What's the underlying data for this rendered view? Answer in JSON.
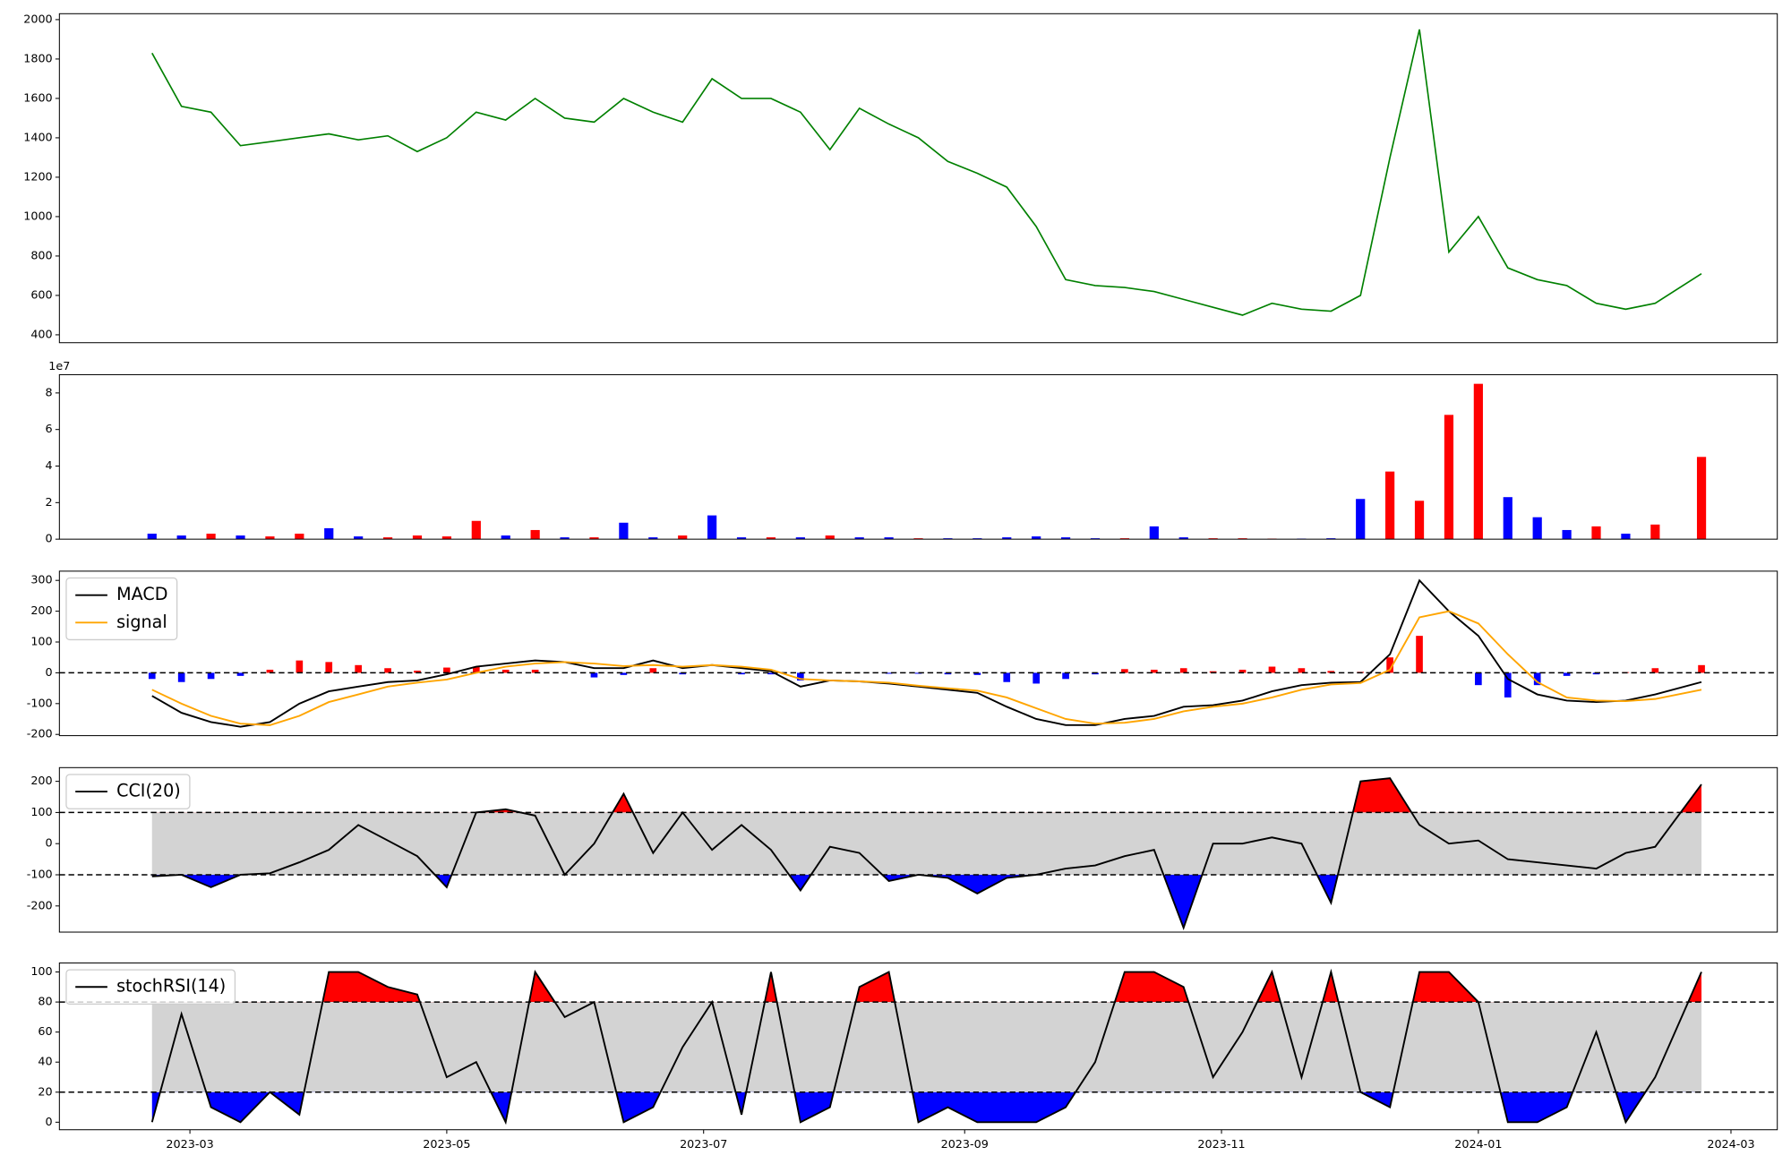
{
  "chart_data": [
    {
      "type": "line",
      "color": "green",
      "x": [
        "2023-02-20",
        "2023-02-27",
        "2023-03-06",
        "2023-03-13",
        "2023-03-20",
        "2023-03-27",
        "2023-04-03",
        "2023-04-10",
        "2023-04-17",
        "2023-04-24",
        "2023-05-01",
        "2023-05-08",
        "2023-05-15",
        "2023-05-22",
        "2023-05-29",
        "2023-06-05",
        "2023-06-12",
        "2023-06-19",
        "2023-06-26",
        "2023-07-03",
        "2023-07-10",
        "2023-07-17",
        "2023-07-24",
        "2023-07-31",
        "2023-08-07",
        "2023-08-14",
        "2023-08-21",
        "2023-08-28",
        "2023-09-04",
        "2023-09-11",
        "2023-09-18",
        "2023-09-25",
        "2023-10-02",
        "2023-10-09",
        "2023-10-16",
        "2023-10-23",
        "2023-10-30",
        "2023-11-06",
        "2023-11-13",
        "2023-11-20",
        "2023-11-27",
        "2023-12-04",
        "2023-12-11",
        "2023-12-18",
        "2023-12-25",
        "2024-01-01",
        "2024-01-08",
        "2024-01-15",
        "2024-01-22",
        "2024-01-29",
        "2024-02-05",
        "2024-02-12",
        "2024-02-23"
      ],
      "values": [
        1830,
        1560,
        1530,
        1360,
        1380,
        1400,
        1420,
        1390,
        1410,
        1330,
        1400,
        1530,
        1490,
        1600,
        1500,
        1480,
        1600,
        1530,
        1480,
        1700,
        1600,
        1600,
        1530,
        1340,
        1550,
        1470,
        1400,
        1280,
        1220,
        1150,
        950,
        680,
        650,
        640,
        620,
        580,
        540,
        500,
        560,
        530,
        520,
        600,
        1300,
        1950,
        820,
        1000,
        740,
        680,
        650,
        560,
        530,
        560,
        710
      ],
      "xlim": [
        "2023-01-29",
        "2024-03-12"
      ],
      "ylim": [
        360,
        2030
      ],
      "yticks": [
        400,
        600,
        800,
        1000,
        1200,
        1400,
        1600,
        1800,
        2000
      ]
    },
    {
      "type": "bar",
      "offset_label": "1e7",
      "x": [
        "2023-02-20",
        "2023-02-27",
        "2023-03-06",
        "2023-03-13",
        "2023-03-20",
        "2023-03-27",
        "2023-04-03",
        "2023-04-10",
        "2023-04-17",
        "2023-04-24",
        "2023-05-01",
        "2023-05-08",
        "2023-05-15",
        "2023-05-22",
        "2023-05-29",
        "2023-06-05",
        "2023-06-12",
        "2023-06-19",
        "2023-06-26",
        "2023-07-03",
        "2023-07-10",
        "2023-07-17",
        "2023-07-24",
        "2023-07-31",
        "2023-08-07",
        "2023-08-14",
        "2023-08-21",
        "2023-08-28",
        "2023-09-04",
        "2023-09-11",
        "2023-09-18",
        "2023-09-25",
        "2023-10-02",
        "2023-10-09",
        "2023-10-16",
        "2023-10-23",
        "2023-10-30",
        "2023-11-06",
        "2023-11-13",
        "2023-11-20",
        "2023-11-27",
        "2023-12-04",
        "2023-12-11",
        "2023-12-18",
        "2023-12-25",
        "2024-01-01",
        "2024-01-08",
        "2024-01-15",
        "2024-01-22",
        "2024-01-29",
        "2024-02-05",
        "2024-02-12",
        "2024-02-23"
      ],
      "values": [
        3000000,
        2000000,
        3000000,
        2000000,
        1500000,
        3000000,
        6000000,
        1500000,
        1000000,
        2000000,
        1500000,
        10000000,
        2000000,
        5000000,
        1000000,
        1000000,
        9000000,
        1000000,
        2000000,
        13000000,
        1000000,
        1000000,
        1000000,
        2000000,
        1000000,
        1000000,
        500000,
        500000,
        500000,
        1000000,
        1500000,
        1000000,
        500000,
        500000,
        7000000,
        1000000,
        500000,
        500000,
        300000,
        300000,
        500000,
        22000000,
        37000000,
        21000000,
        68000000,
        85000000,
        23000000,
        12000000,
        5000000,
        7000000,
        3000000,
        8000000,
        45000000
      ],
      "colors": [
        "blue",
        "blue",
        "red",
        "blue",
        "red",
        "red",
        "blue",
        "blue",
        "red",
        "red",
        "red",
        "red",
        "blue",
        "red",
        "blue",
        "red",
        "blue",
        "blue",
        "red",
        "blue",
        "blue",
        "red",
        "blue",
        "red",
        "blue",
        "blue",
        "red",
        "blue",
        "blue",
        "blue",
        "blue",
        "blue",
        "blue",
        "red",
        "blue",
        "blue",
        "red",
        "red",
        "red",
        "blue",
        "blue",
        "blue",
        "red",
        "red",
        "red",
        "red",
        "blue",
        "blue",
        "blue",
        "red",
        "blue",
        "red",
        "red"
      ],
      "xlim": [
        "2023-01-29",
        "2024-03-12"
      ],
      "ylim": [
        0,
        90000000
      ],
      "yticks": [
        0,
        {
          "value": 20000000,
          "label": "2"
        },
        {
          "value": 40000000,
          "label": "4"
        },
        {
          "value": 60000000,
          "label": "6"
        },
        {
          "value": 80000000,
          "label": "8"
        }
      ]
    },
    {
      "type": "macd",
      "hline": 0,
      "up_color": "red",
      "down_color": "blue",
      "x": [
        "2023-02-20",
        "2023-02-27",
        "2023-03-06",
        "2023-03-13",
        "2023-03-20",
        "2023-03-27",
        "2023-04-03",
        "2023-04-10",
        "2023-04-17",
        "2023-04-24",
        "2023-05-01",
        "2023-05-08",
        "2023-05-15",
        "2023-05-22",
        "2023-05-29",
        "2023-06-05",
        "2023-06-12",
        "2023-06-19",
        "2023-06-26",
        "2023-07-03",
        "2023-07-10",
        "2023-07-17",
        "2023-07-24",
        "2023-07-31",
        "2023-08-07",
        "2023-08-14",
        "2023-08-21",
        "2023-08-28",
        "2023-09-04",
        "2023-09-11",
        "2023-09-18",
        "2023-09-25",
        "2023-10-02",
        "2023-10-09",
        "2023-10-16",
        "2023-10-23",
        "2023-10-30",
        "2023-11-06",
        "2023-11-13",
        "2023-11-20",
        "2023-11-27",
        "2023-12-04",
        "2023-12-11",
        "2023-12-18",
        "2023-12-25",
        "2024-01-01",
        "2024-01-08",
        "2024-01-15",
        "2024-01-22",
        "2024-01-29",
        "2024-02-05",
        "2024-02-12",
        "2024-02-23"
      ],
      "series": [
        {
          "name": "MACD",
          "color": "black",
          "values": [
            -75,
            -130,
            -160,
            -175,
            -160,
            -100,
            -60,
            -45,
            -30,
            -25,
            -5,
            20,
            30,
            40,
            35,
            15,
            15,
            40,
            15,
            25,
            15,
            5,
            -45,
            -25,
            -28,
            -35,
            -45,
            -55,
            -65,
            -110,
            -150,
            -170,
            -170,
            -150,
            -140,
            -110,
            -105,
            -90,
            -60,
            -40,
            -32,
            -30,
            60,
            300,
            200,
            120,
            -20,
            -70,
            -90,
            -95,
            -90,
            -70,
            -30
          ]
        },
        {
          "name": "signal",
          "color": "orange",
          "values": [
            -55,
            -100,
            -140,
            -165,
            -170,
            -140,
            -95,
            -70,
            -45,
            -32,
            -22,
            0,
            20,
            30,
            35,
            30,
            22,
            25,
            20,
            25,
            20,
            10,
            -20,
            -25,
            -28,
            -32,
            -42,
            -50,
            -58,
            -80,
            -115,
            -150,
            -165,
            -162,
            -150,
            -125,
            -110,
            -100,
            -80,
            -55,
            -38,
            -33,
            10,
            180,
            200,
            160,
            60,
            -30,
            -80,
            -90,
            -92,
            -85,
            -55
          ]
        }
      ],
      "histogram": [
        -20,
        -30,
        -20,
        -10,
        10,
        40,
        35,
        25,
        15,
        7,
        17,
        20,
        10,
        10,
        0,
        -15,
        -7,
        15,
        -5,
        0,
        -5,
        -5,
        -25,
        0,
        0,
        -3,
        -3,
        -5,
        -7,
        -30,
        -35,
        -20,
        -5,
        12,
        10,
        15,
        5,
        10,
        20,
        15,
        6,
        3,
        50,
        120,
        0,
        -40,
        -80,
        -40,
        -10,
        -5,
        2,
        15,
        25
      ],
      "xlim": [
        "2023-01-29",
        "2024-03-12"
      ],
      "ylim": [
        -204,
        330
      ],
      "yticks": [
        -200,
        -100,
        0,
        100,
        200,
        300
      ],
      "legend": "upper left"
    },
    {
      "type": "oscillator",
      "thresholds": [
        100,
        -100
      ],
      "band_color": "#d3d3d3",
      "upper_color": "red",
      "lower_color": "blue",
      "x": [
        "2023-02-20",
        "2023-02-27",
        "2023-03-06",
        "2023-03-13",
        "2023-03-20",
        "2023-03-27",
        "2023-04-03",
        "2023-04-10",
        "2023-04-17",
        "2023-04-24",
        "2023-05-01",
        "2023-05-08",
        "2023-05-15",
        "2023-05-22",
        "2023-05-29",
        "2023-06-05",
        "2023-06-12",
        "2023-06-19",
        "2023-06-26",
        "2023-07-03",
        "2023-07-10",
        "2023-07-17",
        "2023-07-24",
        "2023-07-31",
        "2023-08-07",
        "2023-08-14",
        "2023-08-21",
        "2023-08-28",
        "2023-09-04",
        "2023-09-11",
        "2023-09-18",
        "2023-09-25",
        "2023-10-02",
        "2023-10-09",
        "2023-10-16",
        "2023-10-23",
        "2023-10-30",
        "2023-11-06",
        "2023-11-13",
        "2023-11-20",
        "2023-11-27",
        "2023-12-04",
        "2023-12-11",
        "2023-12-18",
        "2023-12-25",
        "2024-01-01",
        "2024-01-08",
        "2024-01-15",
        "2024-01-22",
        "2024-01-29",
        "2024-02-05",
        "2024-02-12",
        "2024-02-23"
      ],
      "series": [
        {
          "name": "CCI(20)",
          "color": "black",
          "values": [
            -105,
            -100,
            -140,
            -100,
            -95,
            -60,
            -20,
            60,
            10,
            -40,
            -140,
            100,
            110,
            90,
            -100,
            0,
            160,
            -30,
            100,
            -20,
            60,
            -20,
            -150,
            -10,
            -30,
            -120,
            -100,
            -110,
            -160,
            -110,
            -100,
            -80,
            -70,
            -40,
            -20,
            -270,
            0,
            0,
            20,
            0,
            -190,
            200,
            210,
            60,
            0,
            10,
            -50,
            -60,
            -70,
            -80,
            -30,
            -10,
            190
          ]
        }
      ],
      "xlim": [
        "2023-01-29",
        "2024-03-12"
      ],
      "ylim": [
        -284,
        244
      ],
      "yticks": [
        -200,
        -100,
        0,
        100,
        200
      ],
      "legend": "upper left"
    },
    {
      "type": "oscillator",
      "thresholds": [
        80,
        20
      ],
      "band_color": "#d3d3d3",
      "upper_color": "red",
      "lower_color": "blue",
      "x": [
        "2023-02-20",
        "2023-02-27",
        "2023-03-06",
        "2023-03-13",
        "2023-03-20",
        "2023-03-27",
        "2023-04-03",
        "2023-04-10",
        "2023-04-17",
        "2023-04-24",
        "2023-05-01",
        "2023-05-08",
        "2023-05-15",
        "2023-05-22",
        "2023-05-29",
        "2023-06-05",
        "2023-06-12",
        "2023-06-19",
        "2023-06-26",
        "2023-07-03",
        "2023-07-10",
        "2023-07-17",
        "2023-07-24",
        "2023-07-31",
        "2023-08-07",
        "2023-08-14",
        "2023-08-21",
        "2023-08-28",
        "2023-09-04",
        "2023-09-11",
        "2023-09-18",
        "2023-09-25",
        "2023-10-02",
        "2023-10-09",
        "2023-10-16",
        "2023-10-23",
        "2023-10-30",
        "2023-11-06",
        "2023-11-13",
        "2023-11-20",
        "2023-11-27",
        "2023-12-04",
        "2023-12-11",
        "2023-12-18",
        "2023-12-25",
        "2024-01-01",
        "2024-01-08",
        "2024-01-15",
        "2024-01-22",
        "2024-01-29",
        "2024-02-05",
        "2024-02-12",
        "2024-02-23"
      ],
      "series": [
        {
          "name": "stochRSI(14)",
          "color": "black",
          "values": [
            0,
            72,
            10,
            0,
            20,
            5,
            100,
            100,
            90,
            85,
            30,
            40,
            0,
            100,
            70,
            80,
            0,
            10,
            50,
            80,
            5,
            100,
            0,
            10,
            90,
            100,
            0,
            10,
            0,
            0,
            0,
            10,
            40,
            100,
            100,
            90,
            30,
            60,
            100,
            30,
            100,
            20,
            10,
            100,
            100,
            80,
            0,
            0,
            10,
            60,
            0,
            30,
            100
          ]
        }
      ],
      "xlim": [
        "2023-01-29",
        "2024-03-12"
      ],
      "ylim": [
        -5,
        106
      ],
      "yticks": [
        0,
        20,
        40,
        60,
        80,
        100
      ],
      "legend": "upper left",
      "xticks": [
        {
          "value": "2023-03-01",
          "label": "2023-03"
        },
        {
          "value": "2023-05-01",
          "label": "2023-05"
        },
        {
          "value": "2023-07-01",
          "label": "2023-07"
        },
        {
          "value": "2023-09-01",
          "label": "2023-09"
        },
        {
          "value": "2023-11-01",
          "label": "2023-11"
        },
        {
          "value": "2024-01-01",
          "label": "2024-01"
        },
        {
          "value": "2024-03-01",
          "label": "2024-03"
        }
      ]
    }
  ]
}
